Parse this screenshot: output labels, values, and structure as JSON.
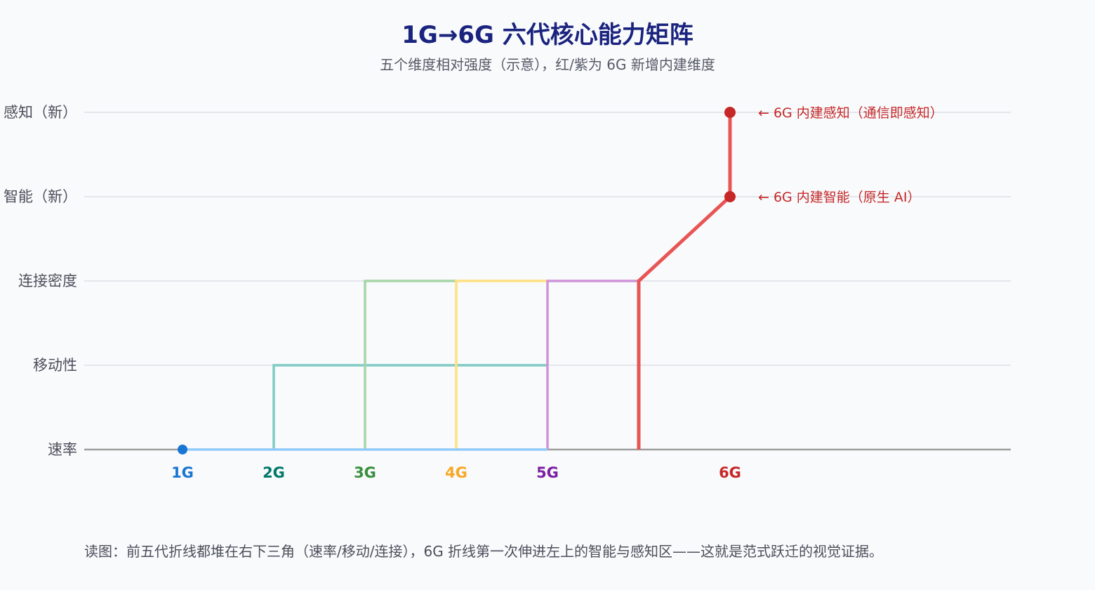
{
  "chart_data": {
    "type": "line",
    "title": "1G→6G 六代核心能力矩阵",
    "subtitle": "五个维度相对强度（示意），红/紫为 6G 新增内建维度",
    "categories": [
      "1G",
      "2G",
      "3G",
      "4G",
      "5G",
      "6G"
    ],
    "dimensions": [
      "速率",
      "移动性",
      "连接密度",
      "智能（新）",
      "感知（新）"
    ],
    "ylim": [
      0,
      4
    ],
    "grid": true,
    "series": [
      {
        "generation": "1G",
        "color": "#1976d2",
        "line_color": "#90caf9",
        "points": [
          {
            "x": 1,
            "y": 0
          },
          {
            "x": 5,
            "y": 0
          }
        ]
      },
      {
        "generation": "2G",
        "color": "#00796b",
        "line_color": "#80cbc4",
        "points": [
          {
            "x": 2,
            "y": 0
          },
          {
            "x": 2,
            "y": 1
          },
          {
            "x": 5,
            "y": 1
          }
        ]
      },
      {
        "generation": "3G",
        "color": "#388e3c",
        "line_color": "#a5d6a7",
        "points": [
          {
            "x": 3,
            "y": 0
          },
          {
            "x": 3,
            "y": 2
          },
          {
            "x": 4,
            "y": 2
          }
        ]
      },
      {
        "generation": "4G",
        "color": "#f9a825",
        "line_color": "#ffe082",
        "points": [
          {
            "x": 4,
            "y": 0
          },
          {
            "x": 4,
            "y": 2
          },
          {
            "x": 5,
            "y": 2
          }
        ]
      },
      {
        "generation": "5G",
        "color": "#7b1fa2",
        "line_color": "#ce93d8",
        "points": [
          {
            "x": 5,
            "y": 0
          },
          {
            "x": 5,
            "y": 2
          },
          {
            "x": 6,
            "y": 2
          }
        ]
      },
      {
        "generation": "6G",
        "color": "#c62828",
        "line_color": "#e85555",
        "points": [
          {
            "x": 6,
            "y": 0
          },
          {
            "x": 6,
            "y": 2
          },
          {
            "x": 7,
            "y": 3
          },
          {
            "x": 7,
            "y": 4
          }
        ],
        "markers": [
          {
            "x": 7,
            "y": 3
          },
          {
            "x": 7,
            "y": 4
          }
        ]
      }
    ],
    "annotations": [
      {
        "x": 7,
        "y": 4,
        "text": "← 6G 内建感知（通信即感知）"
      },
      {
        "x": 7,
        "y": 3,
        "text": "← 6G 内建智能（原生 AI）"
      }
    ],
    "footnote": "读图：前五代折线都堆在右下三角（速率/移动/连接），6G 折线第一次伸进左上的智能与感知区——这就是范式跃迁的视觉证据。"
  }
}
